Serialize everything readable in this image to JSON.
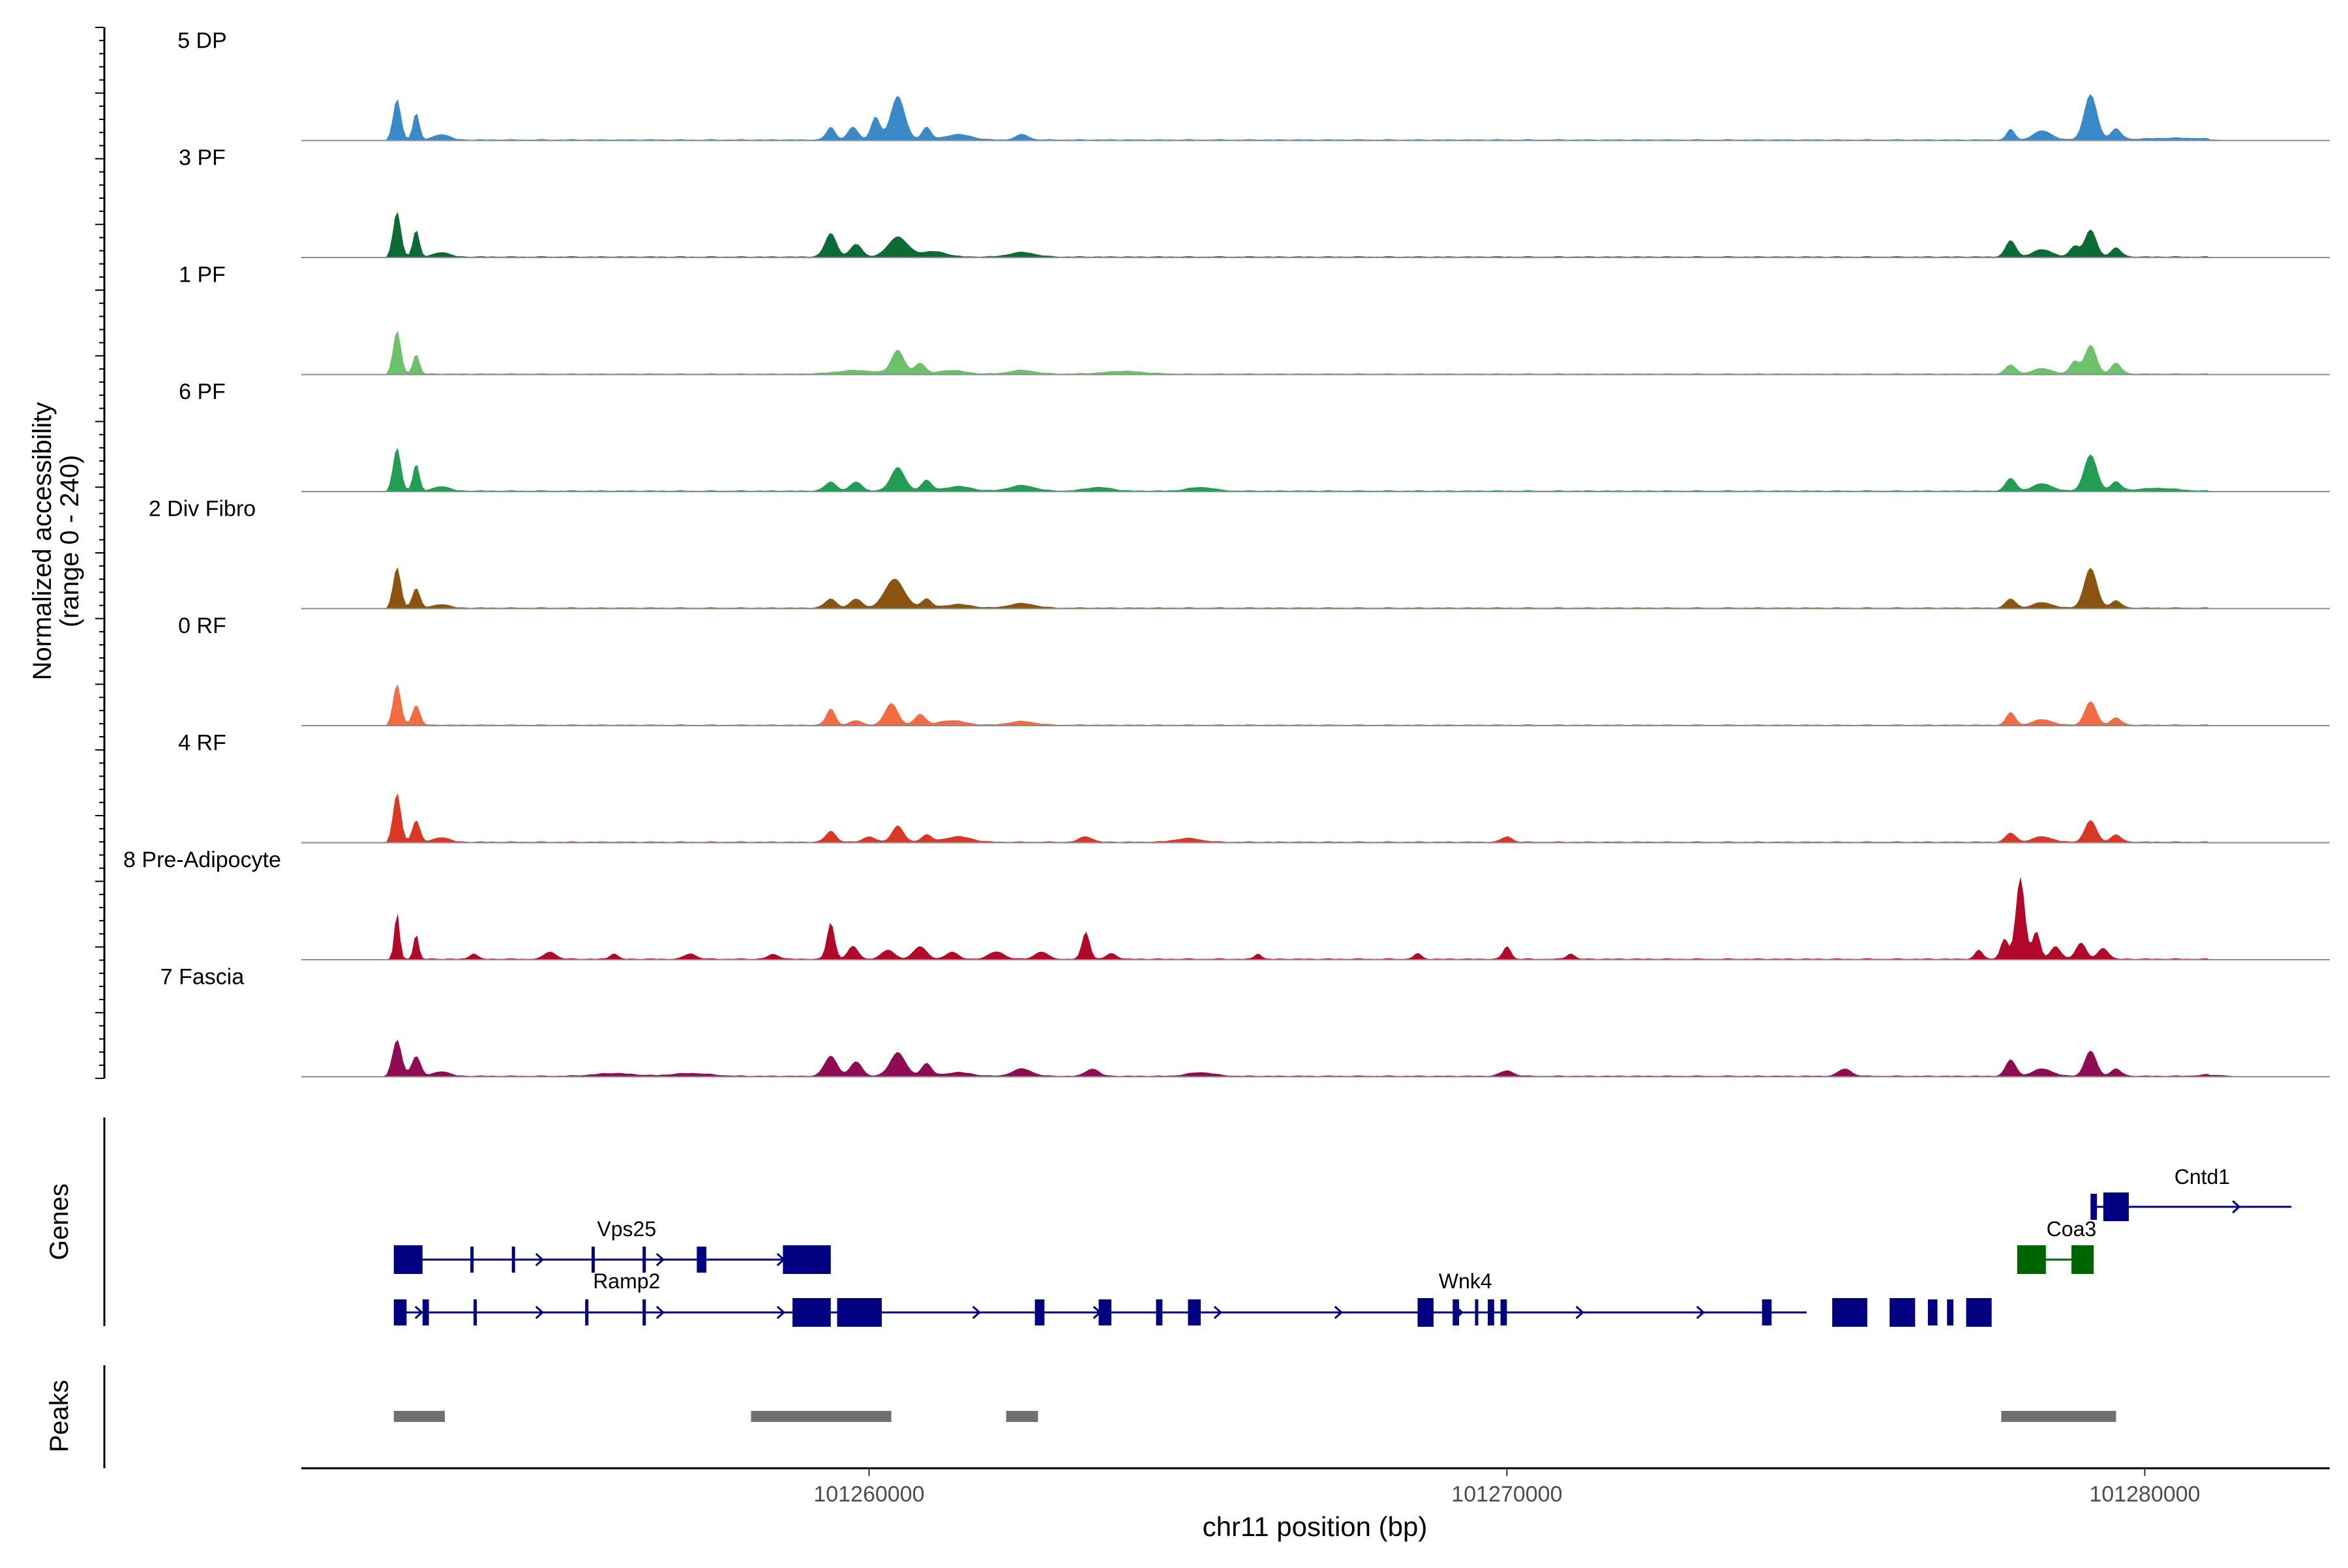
{
  "chart_data": {
    "type": "area",
    "title": "",
    "ylabel_line1": "Normalized accessibility",
    "ylabel_line2": "(range 0 - 240)",
    "xlabel": "chr11 position (bp)",
    "xlim": [
      101251100,
      101282900
    ],
    "ylim": [
      0,
      240
    ],
    "x_ticks": [
      {
        "value": 101260000,
        "label": "101260000"
      },
      {
        "value": 101270000,
        "label": "101270000"
      },
      {
        "value": 101280000,
        "label": "101280000"
      }
    ],
    "tracks": [
      {
        "name": "5 DP",
        "color": "#3A89C9",
        "peaks": [
          [
            101252600,
            45,
            60
          ],
          [
            101252900,
            30,
            50
          ],
          [
            101253300,
            6,
            120
          ],
          [
            101259400,
            14,
            70
          ],
          [
            101259750,
            14,
            80
          ],
          [
            101260100,
            25,
            70
          ],
          [
            101260450,
            48,
            110
          ],
          [
            101260900,
            14,
            70
          ],
          [
            101261400,
            6,
            200
          ],
          [
            101262400,
            6,
            100
          ],
          [
            101277900,
            12,
            60
          ],
          [
            101278400,
            10,
            140
          ],
          [
            101279150,
            50,
            100
          ],
          [
            101279550,
            12,
            80
          ],
          [
            101280500,
            2,
            500
          ]
        ]
      },
      {
        "name": "3 PF",
        "color": "#0C6B34",
        "peaks": [
          [
            101252600,
            50,
            60
          ],
          [
            101252900,
            30,
            50
          ],
          [
            101253300,
            5,
            120
          ],
          [
            101259400,
            26,
            90
          ],
          [
            101259800,
            14,
            90
          ],
          [
            101260450,
            22,
            150
          ],
          [
            101261000,
            6,
            200
          ],
          [
            101262400,
            5,
            200
          ],
          [
            101277900,
            18,
            80
          ],
          [
            101278400,
            8,
            150
          ],
          [
            101278900,
            12,
            70
          ],
          [
            101279150,
            30,
            90
          ],
          [
            101279550,
            10,
            80
          ]
        ]
      },
      {
        "name": "1 PF",
        "color": "#6CC16A",
        "peaks": [
          [
            101252600,
            48,
            60
          ],
          [
            101252900,
            22,
            50
          ],
          [
            101259800,
            4,
            300
          ],
          [
            101260450,
            26,
            100
          ],
          [
            101260800,
            12,
            80
          ],
          [
            101261300,
            4,
            200
          ],
          [
            101262400,
            4,
            200
          ],
          [
            101264000,
            3,
            300
          ],
          [
            101277900,
            10,
            80
          ],
          [
            101278400,
            6,
            150
          ],
          [
            101278900,
            14,
            70
          ],
          [
            101279150,
            32,
            90
          ],
          [
            101279550,
            12,
            80
          ]
        ]
      },
      {
        "name": "6 PF",
        "color": "#239C55",
        "peaks": [
          [
            101252600,
            48,
            60
          ],
          [
            101252900,
            30,
            50
          ],
          [
            101253300,
            5,
            120
          ],
          [
            101259400,
            10,
            90
          ],
          [
            101259800,
            10,
            90
          ],
          [
            101260450,
            26,
            110
          ],
          [
            101260900,
            12,
            80
          ],
          [
            101261400,
            5,
            200
          ],
          [
            101262400,
            6,
            200
          ],
          [
            101263600,
            4,
            200
          ],
          [
            101265200,
            4,
            200
          ],
          [
            101277900,
            14,
            80
          ],
          [
            101278400,
            8,
            150
          ],
          [
            101279150,
            40,
            100
          ],
          [
            101279550,
            10,
            80
          ],
          [
            101280200,
            3,
            300
          ]
        ]
      },
      {
        "name": "2 Div Fibro",
        "color": "#8B5410",
        "peaks": [
          [
            101252600,
            45,
            60
          ],
          [
            101252900,
            22,
            60
          ],
          [
            101253300,
            4,
            120
          ],
          [
            101259400,
            10,
            90
          ],
          [
            101259800,
            10,
            90
          ],
          [
            101260400,
            32,
            150
          ],
          [
            101260900,
            10,
            80
          ],
          [
            101261400,
            4,
            200
          ],
          [
            101262400,
            5,
            200
          ],
          [
            101277900,
            10,
            80
          ],
          [
            101278400,
            6,
            150
          ],
          [
            101279150,
            44,
            100
          ],
          [
            101279550,
            8,
            80
          ]
        ]
      },
      {
        "name": "0 RF",
        "color": "#F26B41",
        "peaks": [
          [
            101252600,
            45,
            60
          ],
          [
            101252900,
            22,
            60
          ],
          [
            101259400,
            18,
            70
          ],
          [
            101259800,
            5,
            90
          ],
          [
            101260350,
            24,
            100
          ],
          [
            101260800,
            12,
            80
          ],
          [
            101261300,
            5,
            200
          ],
          [
            101262400,
            4,
            200
          ],
          [
            101277900,
            14,
            70
          ],
          [
            101278400,
            6,
            150
          ],
          [
            101279150,
            26,
            90
          ],
          [
            101279550,
            8,
            80
          ]
        ]
      },
      {
        "name": "4 RF",
        "color": "#D93827",
        "peaks": [
          [
            101252600,
            54,
            60
          ],
          [
            101252900,
            24,
            60
          ],
          [
            101253300,
            5,
            120
          ],
          [
            101259400,
            12,
            80
          ],
          [
            101260000,
            6,
            90
          ],
          [
            101260450,
            18,
            90
          ],
          [
            101260900,
            8,
            80
          ],
          [
            101261400,
            6,
            200
          ],
          [
            101263400,
            6,
            100
          ],
          [
            101265000,
            4,
            200
          ],
          [
            101270000,
            6,
            80
          ],
          [
            101277900,
            10,
            80
          ],
          [
            101278400,
            6,
            150
          ],
          [
            101279150,
            24,
            90
          ],
          [
            101279550,
            8,
            80
          ]
        ]
      },
      {
        "name": "8 Pre-Adipocyte",
        "color": "#B2092B",
        "peaks": [
          [
            101252600,
            52,
            40
          ],
          [
            101252900,
            28,
            40
          ],
          [
            101253800,
            6,
            60
          ],
          [
            101255000,
            8,
            90
          ],
          [
            101256000,
            6,
            60
          ],
          [
            101257200,
            6,
            90
          ],
          [
            101258500,
            5,
            90
          ],
          [
            101259400,
            40,
            60
          ],
          [
            101259750,
            14,
            80
          ],
          [
            101260300,
            10,
            100
          ],
          [
            101260800,
            14,
            100
          ],
          [
            101261300,
            8,
            90
          ],
          [
            101262000,
            8,
            120
          ],
          [
            101262700,
            8,
            100
          ],
          [
            101263400,
            30,
            60
          ],
          [
            101263800,
            6,
            80
          ],
          [
            101266100,
            6,
            50
          ],
          [
            101268600,
            6,
            60
          ],
          [
            101270000,
            14,
            60
          ],
          [
            101271000,
            6,
            60
          ],
          [
            101277400,
            10,
            60
          ],
          [
            101277800,
            22,
            60
          ],
          [
            101278050,
            90,
            70
          ],
          [
            101278300,
            30,
            60
          ],
          [
            101278600,
            14,
            80
          ],
          [
            101279000,
            18,
            80
          ],
          [
            101279350,
            12,
            80
          ]
        ]
      },
      {
        "name": "7 Fascia",
        "color": "#8F0B53",
        "peaks": [
          [
            101252600,
            40,
            70
          ],
          [
            101252900,
            22,
            70
          ],
          [
            101253300,
            5,
            120
          ],
          [
            101256000,
            3,
            300
          ],
          [
            101257200,
            3,
            300
          ],
          [
            101259400,
            22,
            100
          ],
          [
            101259800,
            16,
            90
          ],
          [
            101260450,
            26,
            120
          ],
          [
            101260900,
            14,
            80
          ],
          [
            101261400,
            4,
            200
          ],
          [
            101262400,
            8,
            150
          ],
          [
            101263500,
            8,
            100
          ],
          [
            101265200,
            4,
            200
          ],
          [
            101270000,
            6,
            100
          ],
          [
            101275300,
            8,
            100
          ],
          [
            101277900,
            18,
            80
          ],
          [
            101278400,
            8,
            150
          ],
          [
            101279150,
            28,
            90
          ],
          [
            101279550,
            8,
            80
          ],
          [
            101281100,
            2,
            200
          ]
        ]
      }
    ],
    "genes_label": "Genes",
    "genes": [
      {
        "name": "Vps25",
        "strand": "+",
        "color": "#000080",
        "start": 101252550,
        "end": 101259400,
        "label_x": 101256200,
        "exons": [
          [
            101252550,
            101253000
          ],
          [
            101253750,
            101253800
          ],
          [
            101254400,
            101254450
          ],
          [
            101255650,
            101255700
          ],
          [
            101256450,
            101256500
          ],
          [
            101257300,
            101257450
          ],
          [
            101258650,
            101259400
          ]
        ]
      },
      {
        "name": "Ramp2",
        "strand": "+",
        "color": "#000080",
        "start": 101252550,
        "end": 101259400,
        "label_x": 101256200,
        "exons": [
          [
            101252550,
            101252750
          ],
          [
            101253000,
            101253100
          ],
          [
            101253800,
            101253830
          ],
          [
            101255550,
            101255600
          ],
          [
            101256450,
            101256480
          ],
          [
            101258800,
            101259400
          ]
        ]
      },
      {
        "name": "Wnk4",
        "strand": "+",
        "color": "#000080",
        "start": 101259400,
        "end": 101274700,
        "label_x": 101269350,
        "exons": [
          [
            101259500,
            101260200
          ],
          [
            101262600,
            101262750
          ],
          [
            101263600,
            101263800
          ],
          [
            101264500,
            101264600
          ],
          [
            101265000,
            101265200
          ],
          [
            101268600,
            101268850
          ],
          [
            101269150,
            101269250
          ],
          [
            101269500,
            101269550
          ],
          [
            101269700,
            101269800
          ],
          [
            101269900,
            101270000
          ],
          [
            101274000,
            101274150
          ],
          [
            101275100,
            101275650
          ],
          [
            101276000,
            101276400
          ],
          [
            101276600,
            101276750
          ],
          [
            101276900,
            101277000
          ],
          [
            101277200,
            101277600
          ]
        ]
      },
      {
        "name": "Coa3",
        "strand": "+",
        "color": "#006400",
        "start": 101278000,
        "end": 101279200,
        "label_x": 101278850,
        "exons": [
          [
            101278000,
            101278450
          ],
          [
            101278850,
            101279200
          ]
        ]
      },
      {
        "name": "Cntd1",
        "strand": "+",
        "color": "#000080",
        "start": 101279150,
        "end": 101282300,
        "label_x": 101280900,
        "exons": [
          [
            101279150,
            101279250
          ],
          [
            101279350,
            101279750
          ]
        ]
      }
    ],
    "peaks_label": "Peaks",
    "peak_regions": [
      [
        101252550,
        101253350
      ],
      [
        101258150,
        101260350
      ],
      [
        101262150,
        101262650
      ],
      [
        101277750,
        101279550
      ]
    ]
  }
}
